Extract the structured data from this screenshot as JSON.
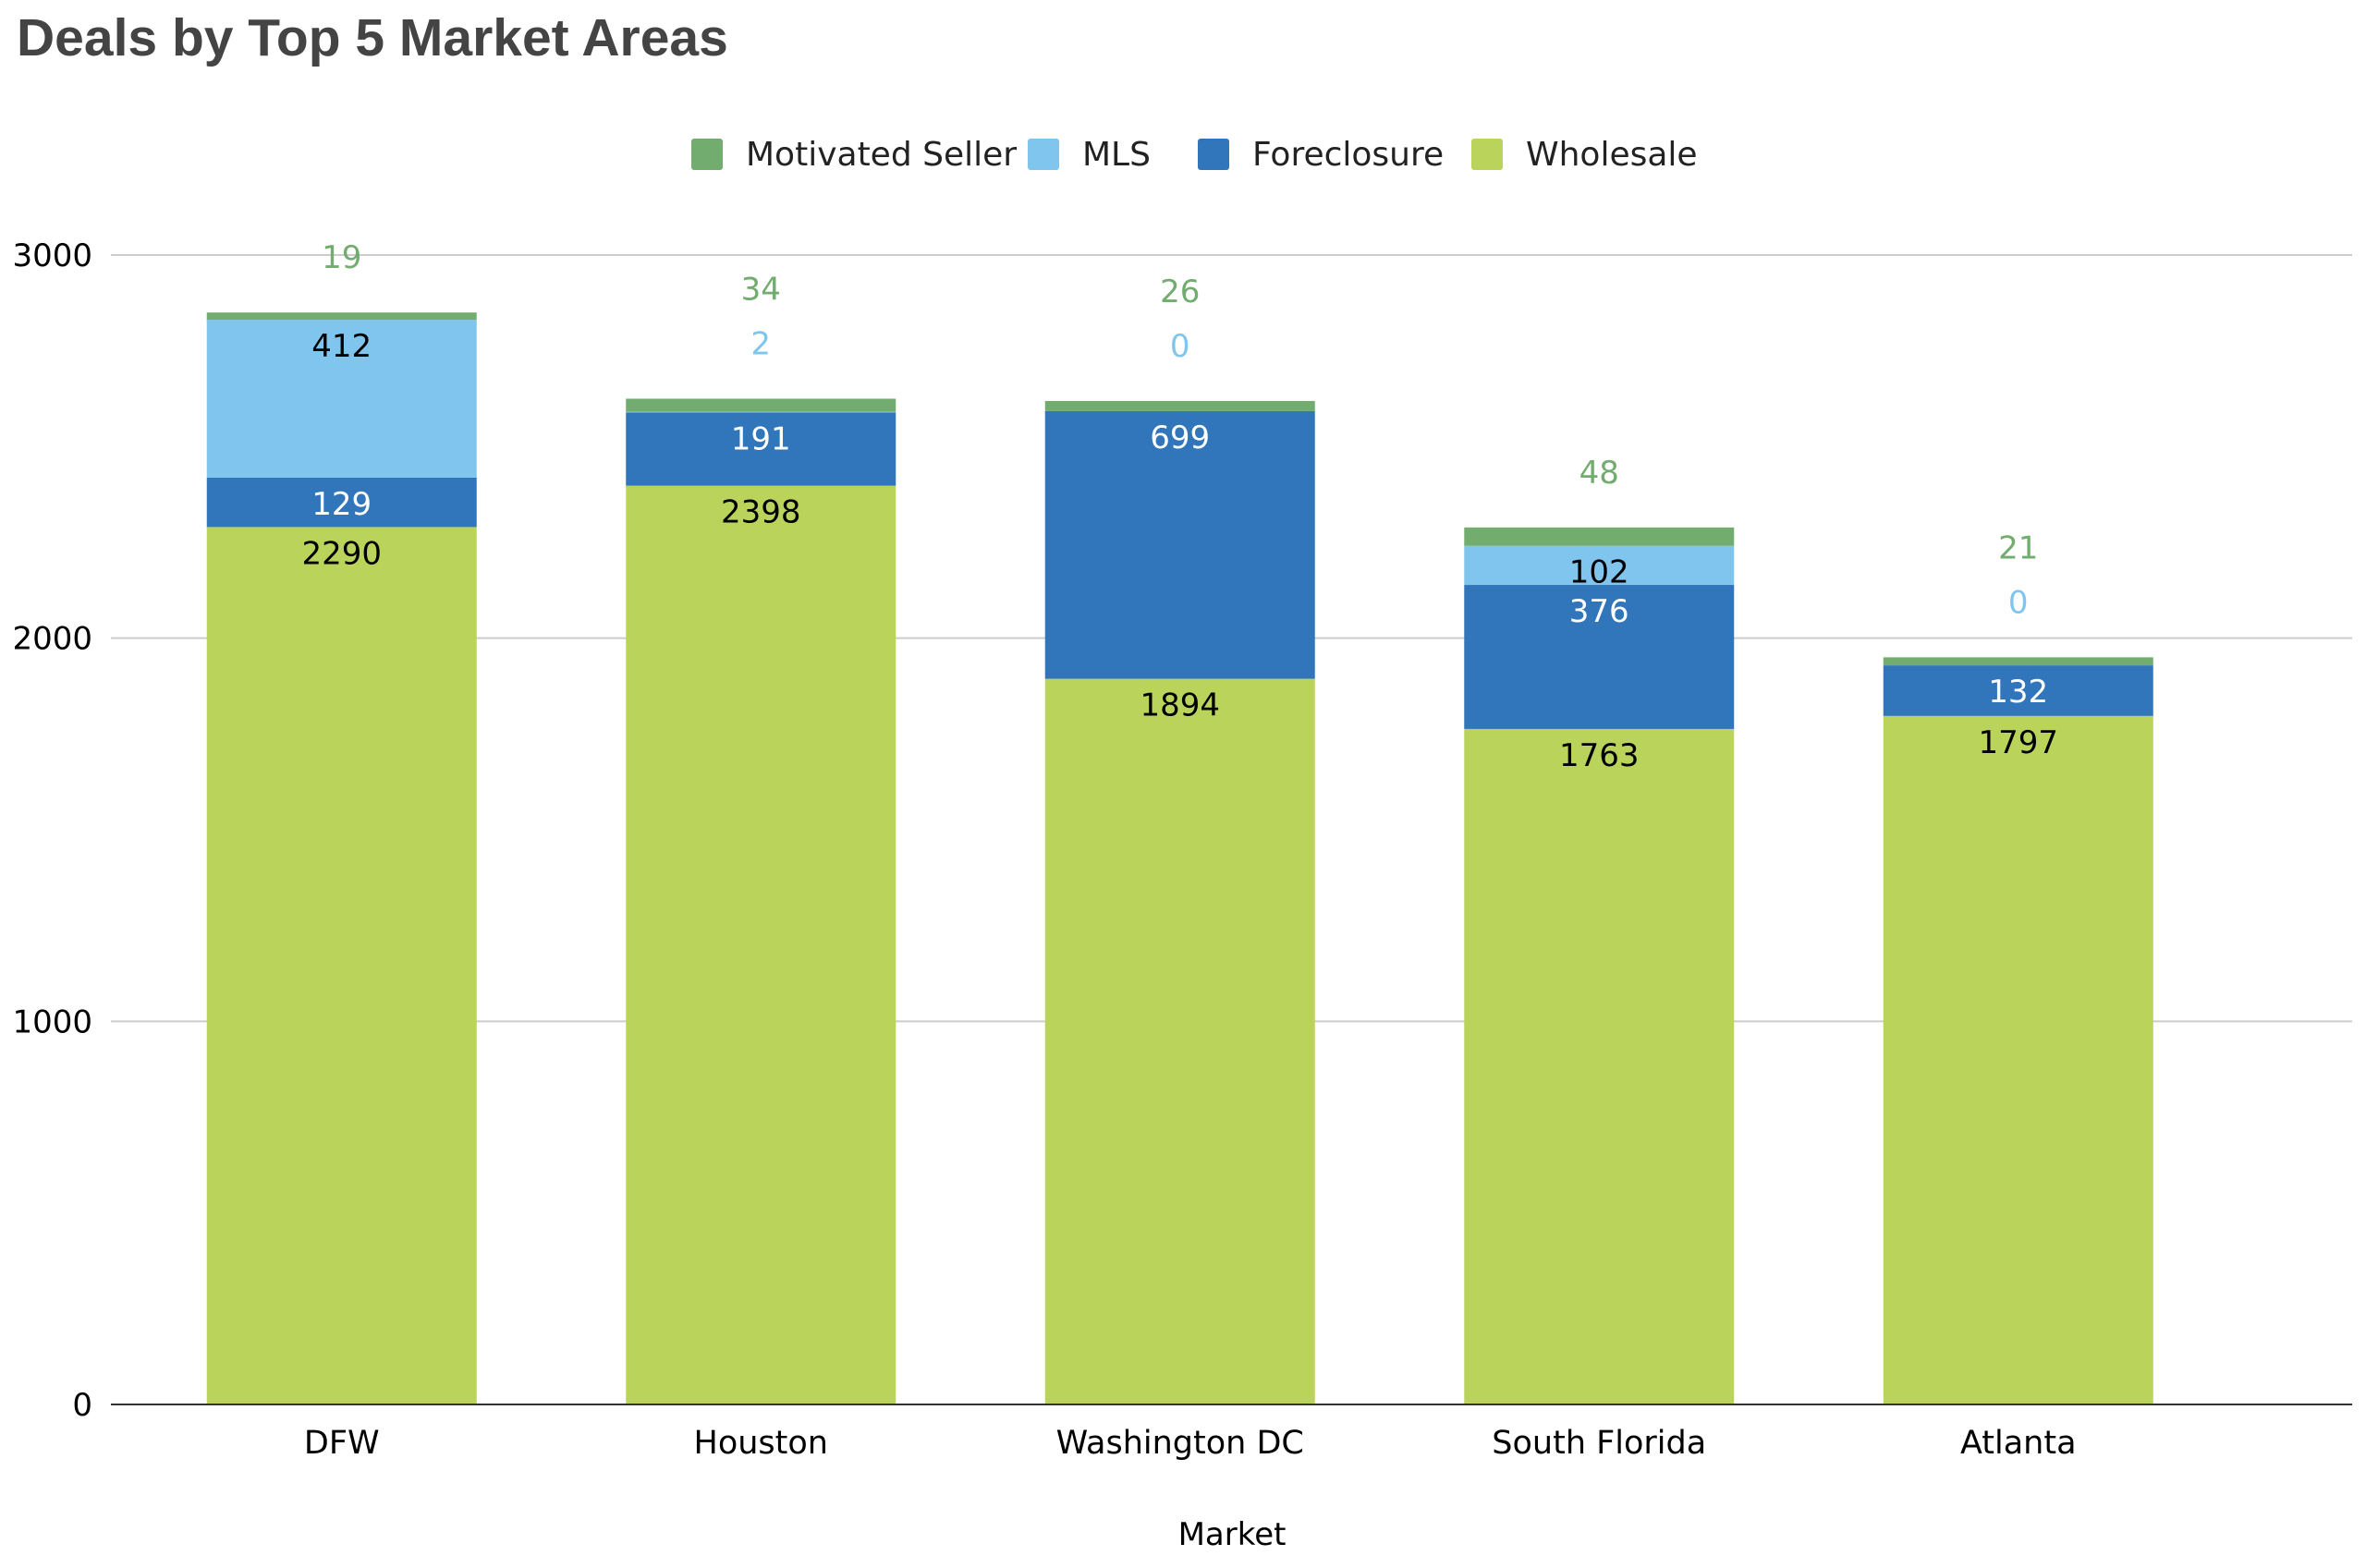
{
  "chart_data": {
    "type": "bar",
    "stacked": true,
    "title": "Deals by Top 5 Market Areas",
    "xlabel": "Market",
    "ylabel": "",
    "ylim": [
      0,
      3000
    ],
    "yticks": [
      0,
      1000,
      2000,
      3000
    ],
    "grid": true,
    "legend_position": "top",
    "categories": [
      "DFW",
      "Houston",
      "Washington DC",
      "South Florida",
      "Atlanta"
    ],
    "series": [
      {
        "name": "Wholesale",
        "values": [
          2290,
          2398,
          1894,
          1763,
          1797
        ],
        "color": "#bad35b",
        "label_color": "#000000"
      },
      {
        "name": "Foreclosure",
        "values": [
          129,
          191,
          699,
          376,
          132
        ],
        "color": "#3176bb",
        "label_color": "#ffffff"
      },
      {
        "name": "MLS",
        "values": [
          412,
          2,
          0,
          102,
          0
        ],
        "color": "#7fc5ee",
        "label_color": "#000000",
        "outside_label_color": "#7fc5ee"
      },
      {
        "name": "Motivated Seller",
        "values": [
          19,
          34,
          26,
          48,
          21
        ],
        "color": "#72ad6f",
        "label_color": "#72ad6f"
      }
    ],
    "legend_order": [
      "Motivated Seller",
      "MLS",
      "Foreclosure",
      "Wholesale"
    ]
  }
}
